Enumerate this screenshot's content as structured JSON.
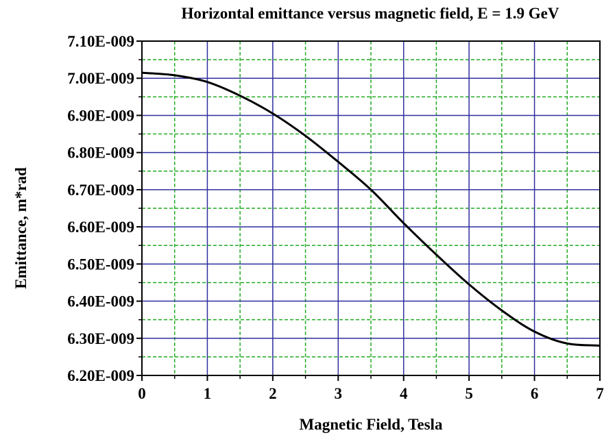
{
  "chart_data": {
    "type": "line",
    "title": "Horizontal emittance versus magnetic field, E = 1.9 GeV",
    "xlabel": "Magnetic Field, Tesla",
    "ylabel": "Emittance, m*rad",
    "xlim": [
      0,
      7
    ],
    "ylim": [
      6.2e-09,
      7.1e-09
    ],
    "x_ticks": [
      0,
      1,
      2,
      3,
      4,
      5,
      6,
      7
    ],
    "x_tick_labels": [
      "0",
      "1",
      "2",
      "3",
      "4",
      "5",
      "6",
      "7"
    ],
    "y_ticks": [
      6.2e-09,
      6.3e-09,
      6.4e-09,
      6.5e-09,
      6.6e-09,
      6.7e-09,
      6.8e-09,
      6.9e-09,
      7e-09,
      7.1e-09
    ],
    "y_tick_labels": [
      "6.20E-009",
      "6.30E-009",
      "6.40E-009",
      "6.50E-009",
      "6.60E-009",
      "6.70E-009",
      "6.80E-009",
      "6.90E-009",
      "7.00E-009",
      "7.10E-009"
    ],
    "grid": true,
    "colors": {
      "major_grid": "#2e2e9e",
      "minor_grid": "#22aa22",
      "line": "#000000"
    },
    "series": [
      {
        "x": [
          0,
          0.5,
          1,
          1.5,
          2,
          2.5,
          3,
          3.5,
          4,
          4.5,
          5,
          5.5,
          6,
          6.5,
          7
        ],
        "y": [
          7.015e-09,
          7.008e-09,
          6.99e-09,
          6.953e-09,
          6.905e-09,
          6.845e-09,
          6.775e-09,
          6.7e-09,
          6.61e-09,
          6.525e-09,
          6.445e-09,
          6.375e-09,
          6.318e-09,
          6.286e-09,
          6.28e-09
        ]
      }
    ]
  }
}
